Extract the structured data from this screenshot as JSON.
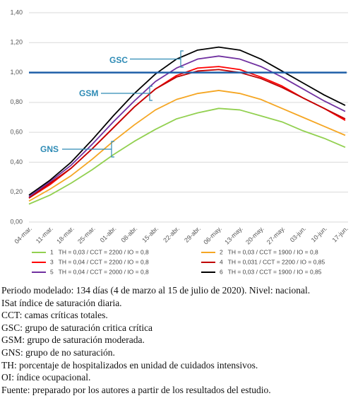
{
  "chart_data": {
    "type": "line",
    "categories": [
      "04-mar.",
      "11-mar.",
      "18-mar.",
      "25-mar.",
      "01-abr.",
      "08-abr.",
      "15-abr.",
      "22-abr.",
      "29-abr.",
      "06-may.",
      "13-may.",
      "20-may.",
      "27-may.",
      "03-jun.",
      "10-jun.",
      "17-jun."
    ],
    "series": [
      {
        "name": "1   TH = 0,03 / CCT = 2200 / IO = 0,8",
        "color": "#92d050",
        "values": [
          0.12,
          0.18,
          0.26,
          0.35,
          0.45,
          0.54,
          0.62,
          0.69,
          0.73,
          0.76,
          0.75,
          0.71,
          0.67,
          0.61,
          0.56,
          0.5
        ]
      },
      {
        "name": "2   TH = 0,03 / CCT = 1900 / IO = 0,8",
        "color": "#f5a623",
        "values": [
          0.14,
          0.22,
          0.31,
          0.42,
          0.54,
          0.65,
          0.75,
          0.82,
          0.86,
          0.88,
          0.86,
          0.82,
          0.76,
          0.7,
          0.64,
          0.58
        ]
      },
      {
        "name": "3   TH = 0,04 / CCT = 2200 / IO = 0,8",
        "color": "#ff0000",
        "values": [
          0.16,
          0.25,
          0.36,
          0.49,
          0.63,
          0.77,
          0.89,
          0.98,
          1.03,
          1.04,
          1.02,
          0.97,
          0.91,
          0.83,
          0.76,
          0.68
        ]
      },
      {
        "name": "4   TH = 0,031 / CCT = 2200 / IO = 0,85",
        "color": "#c00000",
        "values": [
          0.16,
          0.26,
          0.36,
          0.49,
          0.63,
          0.77,
          0.89,
          0.97,
          1.01,
          1.02,
          1.0,
          0.96,
          0.9,
          0.83,
          0.76,
          0.69
        ]
      },
      {
        "name": "5   TH = 0,04 / CCT = 2000 / IO = 0,8",
        "color": "#7030a0",
        "values": [
          0.17,
          0.27,
          0.38,
          0.52,
          0.67,
          0.81,
          0.94,
          1.03,
          1.09,
          1.11,
          1.09,
          1.04,
          0.97,
          0.89,
          0.81,
          0.74
        ]
      },
      {
        "name": "6   TH = 0,03 / CCT = 1900 / IO = 0,85",
        "color": "#000000",
        "values": [
          0.18,
          0.28,
          0.4,
          0.55,
          0.71,
          0.86,
          0.99,
          1.09,
          1.15,
          1.17,
          1.15,
          1.09,
          1.01,
          0.93,
          0.85,
          0.78
        ]
      }
    ],
    "reference_line": {
      "value": 1,
      "color": "#1f5fa8"
    },
    "annotations": [
      {
        "text": "GSC"
      },
      {
        "text": "GSM"
      },
      {
        "text": "GNS"
      }
    ],
    "ylim": [
      0,
      1.4
    ],
    "yticks": [
      {
        "value": 0,
        "label": "0,00"
      },
      {
        "value": 0.2,
        "label": "0,20"
      },
      {
        "value": 0.4,
        "label": "0,40"
      },
      {
        "value": 0.6,
        "label": "0,60"
      },
      {
        "value": 0.8,
        "label": "0,80"
      },
      {
        "value": 1,
        "label": "1,00"
      },
      {
        "value": 1.2,
        "label": "1,20"
      },
      {
        "value": 1.4,
        "label": "1,40"
      }
    ],
    "grid": true
  },
  "notes": [
    "Periodo modelado: 134 días (4 de marzo al 15 de julio de 2020). Nivel: nacional.",
    "ISat índice de saturación diaria.",
    "CCT: camas críticas totales.",
    "GSC: grupo de saturación critica crítica",
    "GSM: grupo de saturación moderada.",
    "GNS: grupo de no saturación.",
    "TH: porcentaje de hospitalizados en unidad de cuidados intensivos.",
    "OI: índice ocupacional.",
    "Fuente: preparado por los autores a partir de los resultados del estudio."
  ]
}
